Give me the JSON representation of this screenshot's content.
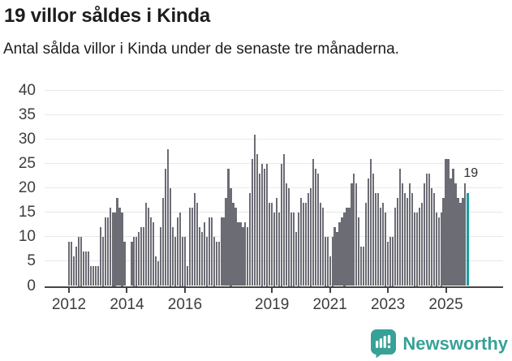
{
  "header": {
    "title": "19 villor såldes i Kinda",
    "subtitle": "Antal sålda villor i Kinda under de senaste tre månaderna."
  },
  "chart_data": {
    "type": "bar",
    "title": "19 villor såldes i Kinda",
    "subtitle": "Antal sålda villor i Kinda under de senaste tre månaderna.",
    "unit": "villor",
    "x_start": "2012-01",
    "x_end": "2025-10",
    "ylim": [
      0,
      40
    ],
    "yticks": [
      0,
      5,
      10,
      15,
      20,
      25,
      30,
      35,
      40
    ],
    "grid": "horizontal",
    "xticks": [
      {
        "label": "2012",
        "m": 0
      },
      {
        "label": "2014",
        "m": 24
      },
      {
        "label": "2016",
        "m": 48
      },
      {
        "label": "2019",
        "m": 84
      },
      {
        "label": "2021",
        "m": 108
      },
      {
        "label": "2023",
        "m": 132
      },
      {
        "label": "2025",
        "m": 156
      }
    ],
    "values": [
      9,
      9,
      6,
      8,
      10,
      10,
      7,
      7,
      7,
      4,
      4,
      4,
      4,
      12,
      10,
      14,
      14,
      16,
      15,
      15,
      18,
      16,
      15,
      9,
      0,
      0,
      9,
      10,
      10,
      11,
      12,
      12,
      17,
      16,
      14,
      13,
      6,
      5,
      12,
      18,
      24,
      28,
      20,
      12,
      10,
      14,
      15,
      10,
      10,
      4,
      16,
      16,
      19,
      17,
      12,
      11,
      13,
      10,
      14,
      14,
      10,
      9,
      9,
      14,
      14,
      18,
      24,
      20,
      17,
      16,
      13,
      13,
      12,
      13,
      12,
      19,
      26,
      31,
      27,
      23,
      25,
      24,
      25,
      17,
      17,
      15,
      18,
      15,
      25,
      27,
      21,
      20,
      15,
      15,
      11,
      15,
      18,
      17,
      17,
      19,
      20,
      26,
      24,
      23,
      17,
      16,
      10,
      10,
      6,
      10,
      12,
      11,
      13,
      14,
      15,
      16,
      16,
      21,
      23,
      21,
      14,
      8,
      8,
      17,
      22,
      26,
      23,
      19,
      19,
      16,
      17,
      15,
      9,
      10,
      10,
      16,
      18,
      24,
      21,
      19,
      18,
      21,
      19,
      15,
      15,
      16,
      17,
      21,
      23,
      23,
      20,
      19,
      15,
      14,
      15,
      18,
      26,
      26,
      22,
      24,
      21,
      18,
      17,
      18,
      21,
      19
    ],
    "highlight_index": 165,
    "annotation": {
      "text": "19",
      "value": 19
    },
    "bar_color": "#6c6c75",
    "highlight_color": "#17a0a0",
    "gridline_color": "#e8e8e8",
    "axis_color": "#444444",
    "legend": "none"
  },
  "footer": {
    "brand": "Newsworthy",
    "brand_color": "#38a197"
  }
}
